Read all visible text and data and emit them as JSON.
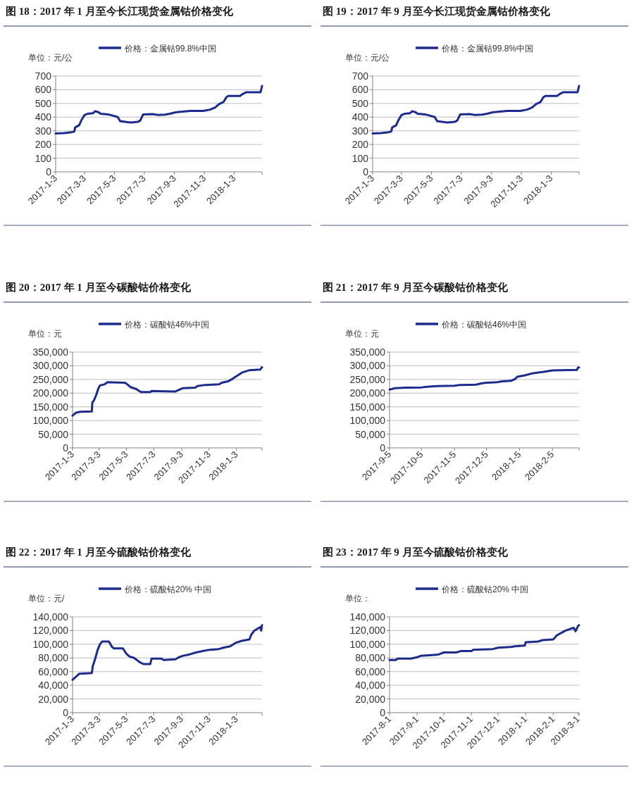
{
  "chart_data": [
    {
      "type": "line",
      "title": "图 18：2017 年 1 月至今长江现货金属钴价格变化",
      "ylabel": "单位：元/公",
      "legend": "top",
      "grid": "y",
      "xlim": [
        "2017-01-03",
        "2018-03-01"
      ],
      "ylim": [
        0,
        700
      ],
      "yticks": [
        0,
        100,
        200,
        300,
        400,
        500,
        600,
        700
      ],
      "xticks": [
        {
          "value": "2017-01-03",
          "label": "2017-1-3"
        },
        {
          "value": "2017-03-03",
          "label": "2017-3-3"
        },
        {
          "value": "2017-05-03",
          "label": "2017-5-3"
        },
        {
          "value": "2017-07-03",
          "label": "2017-7-3"
        },
        {
          "value": "2017-09-03",
          "label": "2017-9-3"
        },
        {
          "value": "2017-11-03",
          "label": "2017-11-3"
        },
        {
          "value": "2018-01-03",
          "label": "2018-1-3"
        }
      ],
      "x": [
        "2017-01-03",
        "2017-01-20",
        "2017-02-05",
        "2017-02-10",
        "2017-02-12",
        "2017-02-20",
        "2017-02-25",
        "2017-03-03",
        "2017-03-10",
        "2017-03-20",
        "2017-03-25",
        "2017-04-01",
        "2017-04-05",
        "2017-04-20",
        "2017-05-01",
        "2017-05-10",
        "2017-05-15",
        "2017-05-25",
        "2017-06-05",
        "2017-06-20",
        "2017-06-25",
        "2017-07-01",
        "2017-07-20",
        "2017-08-01",
        "2017-08-15",
        "2017-08-25",
        "2017-09-05",
        "2017-09-20",
        "2017-10-05",
        "2017-11-01",
        "2017-11-15",
        "2017-11-25",
        "2017-12-03",
        "2017-12-12",
        "2017-12-18",
        "2017-12-22",
        "2018-01-15",
        "2018-01-20",
        "2018-01-28",
        "2018-02-26",
        "2018-03-01"
      ],
      "series": [
        {
          "name": "价格：金属钴99.8%中国",
          "color": "#1c2b8c",
          "values": [
            280,
            283,
            290,
            295,
            325,
            340,
            380,
            415,
            425,
            428,
            443,
            435,
            425,
            420,
            410,
            400,
            370,
            365,
            360,
            365,
            375,
            420,
            422,
            415,
            418,
            425,
            435,
            440,
            445,
            445,
            455,
            470,
            495,
            510,
            545,
            555,
            555,
            568,
            582,
            582,
            628
          ]
        }
      ]
    },
    {
      "type": "line",
      "title": "图 19：2017 年 9 月至今长江现货金属钴价格变化",
      "ylabel": "单位：元/公",
      "legend": "top",
      "grid": "y",
      "xlim": [
        "2017-01-03",
        "2018-03-01"
      ],
      "ylim": [
        0,
        700
      ],
      "yticks": [
        0,
        100,
        200,
        300,
        400,
        500,
        600,
        700
      ],
      "xticks": [
        {
          "value": "2017-01-03",
          "label": "2017-1-3"
        },
        {
          "value": "2017-03-03",
          "label": "2017-3-3"
        },
        {
          "value": "2017-05-03",
          "label": "2017-5-3"
        },
        {
          "value": "2017-07-03",
          "label": "2017-7-3"
        },
        {
          "value": "2017-09-03",
          "label": "2017-9-3"
        },
        {
          "value": "2017-11-03",
          "label": "2017-11-3"
        },
        {
          "value": "2018-01-03",
          "label": "2018-1-3"
        }
      ],
      "x": [
        "2017-01-03",
        "2017-01-20",
        "2017-02-05",
        "2017-02-10",
        "2017-02-12",
        "2017-02-20",
        "2017-02-25",
        "2017-03-03",
        "2017-03-10",
        "2017-03-20",
        "2017-03-25",
        "2017-04-01",
        "2017-04-05",
        "2017-04-20",
        "2017-05-01",
        "2017-05-10",
        "2017-05-15",
        "2017-05-25",
        "2017-06-05",
        "2017-06-20",
        "2017-06-25",
        "2017-07-01",
        "2017-07-20",
        "2017-08-01",
        "2017-08-15",
        "2017-08-25",
        "2017-09-05",
        "2017-09-20",
        "2017-10-05",
        "2017-11-01",
        "2017-11-15",
        "2017-11-25",
        "2017-12-03",
        "2017-12-12",
        "2017-12-18",
        "2017-12-22",
        "2018-01-15",
        "2018-01-20",
        "2018-01-28",
        "2018-02-26",
        "2018-03-01"
      ],
      "series": [
        {
          "name": "价格：金属钴99.8%中国",
          "color": "#1c2b8c",
          "values": [
            280,
            283,
            290,
            295,
            325,
            340,
            380,
            415,
            425,
            428,
            443,
            435,
            425,
            420,
            410,
            400,
            370,
            365,
            360,
            365,
            375,
            420,
            422,
            415,
            418,
            425,
            435,
            440,
            445,
            445,
            455,
            470,
            495,
            510,
            545,
            555,
            555,
            568,
            582,
            582,
            628
          ]
        }
      ]
    },
    {
      "type": "line",
      "title": "图 20：2017 年 1 月至今碳酸钴价格变化",
      "ylabel": "单位：元",
      "legend": "top",
      "grid": "y",
      "xlim": [
        "2017-01-03",
        "2018-03-01"
      ],
      "ylim": [
        0,
        350000
      ],
      "yticks": [
        {
          "value": 0,
          "label": "0"
        },
        {
          "value": 50000,
          "label": "50,000"
        },
        {
          "value": 100000,
          "label": "100,000"
        },
        {
          "value": 150000,
          "label": "150,000"
        },
        {
          "value": 200000,
          "label": "200,000"
        },
        {
          "value": 250000,
          "label": "250,000"
        },
        {
          "value": 300000,
          "label": "300,000"
        },
        {
          "value": 350000,
          "label": "350,000"
        }
      ],
      "xticks": [
        {
          "value": "2017-01-03",
          "label": "2017-1-3"
        },
        {
          "value": "2017-03-03",
          "label": "2017-3-3"
        },
        {
          "value": "2017-05-03",
          "label": "2017-5-3"
        },
        {
          "value": "2017-07-03",
          "label": "2017-7-3"
        },
        {
          "value": "2017-09-03",
          "label": "2017-9-3"
        },
        {
          "value": "2017-11-03",
          "label": "2017-11-3"
        },
        {
          "value": "2018-01-03",
          "label": "2018-1-3"
        }
      ],
      "x": [
        "2017-01-03",
        "2017-01-10",
        "2017-01-20",
        "2017-02-15",
        "2017-02-16",
        "2017-02-20",
        "2017-02-25",
        "2017-03-01",
        "2017-03-05",
        "2017-03-15",
        "2017-03-22",
        "2017-04-30",
        "2017-05-05",
        "2017-05-12",
        "2017-05-25",
        "2017-06-01",
        "2017-06-05",
        "2017-06-25",
        "2017-06-28",
        "2017-08-20",
        "2017-08-28",
        "2017-09-05",
        "2017-10-03",
        "2017-10-08",
        "2017-10-25",
        "2017-11-25",
        "2017-12-01",
        "2017-12-15",
        "2017-12-25",
        "2018-01-03",
        "2018-01-15",
        "2018-02-01",
        "2018-02-25",
        "2018-03-01"
      ],
      "series": [
        {
          "name": "价格：碳酸钴46%中国",
          "color": "#1c2b8c",
          "values": [
            118000,
            128000,
            132000,
            133000,
            165000,
            175000,
            195000,
            215000,
            228000,
            232000,
            240000,
            238000,
            232000,
            222000,
            215000,
            207000,
            204000,
            204000,
            208000,
            206000,
            212000,
            218000,
            220000,
            226000,
            230000,
            232000,
            238000,
            243000,
            252000,
            262000,
            275000,
            284000,
            286000,
            295000
          ]
        }
      ]
    },
    {
      "type": "line",
      "title": "图 21：2017 年 9 月至今碳酸钴价格变化",
      "ylabel": "单位：元",
      "legend": "top",
      "grid": "y",
      "xlim": [
        "2017-09-05",
        "2018-03-02"
      ],
      "ylim": [
        0,
        350000
      ],
      "yticks": [
        {
          "value": 0,
          "label": "0"
        },
        {
          "value": 50000,
          "label": "50,000"
        },
        {
          "value": 100000,
          "label": "100,000"
        },
        {
          "value": 150000,
          "label": "150,000"
        },
        {
          "value": 200000,
          "label": "200,000"
        },
        {
          "value": 250000,
          "label": "250,000"
        },
        {
          "value": 300000,
          "label": "300,000"
        },
        {
          "value": 350000,
          "label": "350,000"
        }
      ],
      "xticks": [
        {
          "value": "2017-09-05",
          "label": "2017-9-5"
        },
        {
          "value": "2017-10-05",
          "label": "2017-10-5"
        },
        {
          "value": "2017-11-05",
          "label": "2017-11-5"
        },
        {
          "value": "2017-12-05",
          "label": "2017-12-5"
        },
        {
          "value": "2018-01-05",
          "label": "2018-1-5"
        },
        {
          "value": "2018-02-05",
          "label": "2018-2-5"
        }
      ],
      "x": [
        "2017-09-05",
        "2017-09-10",
        "2017-09-20",
        "2017-10-05",
        "2017-10-10",
        "2017-10-20",
        "2017-11-05",
        "2017-11-10",
        "2017-11-25",
        "2017-12-01",
        "2017-12-05",
        "2017-12-15",
        "2017-12-20",
        "2017-12-28",
        "2018-01-01",
        "2018-01-03",
        "2018-01-10",
        "2018-01-18",
        "2018-01-28",
        "2018-02-05",
        "2018-02-28",
        "2018-03-01",
        "2018-03-02"
      ],
      "series": [
        {
          "name": "价格：碳酸钴46%中国",
          "color": "#1c2b8c",
          "values": [
            213000,
            218000,
            220000,
            221000,
            223000,
            226000,
            227000,
            230000,
            231000,
            236000,
            238000,
            240000,
            243000,
            245000,
            252000,
            260000,
            265000,
            273000,
            278000,
            283000,
            285000,
            293000,
            294000
          ]
        }
      ]
    },
    {
      "type": "line",
      "title": "图 22：2017 年 1 月至今硫酸钴价格变化",
      "ylabel": "单位：元/",
      "legend": "top",
      "grid": "y",
      "xlim": [
        "2017-01-03",
        "2018-03-01"
      ],
      "ylim": [
        0,
        140000
      ],
      "yticks": [
        {
          "value": 0,
          "label": "0"
        },
        {
          "value": 20000,
          "label": "20,000"
        },
        {
          "value": 40000,
          "label": "40,000"
        },
        {
          "value": 60000,
          "label": "60,000"
        },
        {
          "value": 80000,
          "label": "80,000"
        },
        {
          "value": 100000,
          "label": "100,000"
        },
        {
          "value": 120000,
          "label": "120,000"
        },
        {
          "value": 140000,
          "label": "140,000"
        }
      ],
      "xticks": [
        {
          "value": "2017-01-03",
          "label": "2017-1-3"
        },
        {
          "value": "2017-03-03",
          "label": "2017-3-3"
        },
        {
          "value": "2017-05-03",
          "label": "2017-5-3"
        },
        {
          "value": "2017-07-03",
          "label": "2017-7-3"
        },
        {
          "value": "2017-09-03",
          "label": "2017-9-3"
        },
        {
          "value": "2017-11-03",
          "label": "2017-11-3"
        },
        {
          "value": "2018-01-03",
          "label": "2018-1-3"
        }
      ],
      "x": [
        "2017-01-03",
        "2017-01-10",
        "2017-01-18",
        "2017-02-15",
        "2017-02-17",
        "2017-02-22",
        "2017-02-28",
        "2017-03-05",
        "2017-03-10",
        "2017-03-25",
        "2017-04-01",
        "2017-04-05",
        "2017-04-25",
        "2017-05-03",
        "2017-05-10",
        "2017-05-20",
        "2017-06-01",
        "2017-06-10",
        "2017-06-25",
        "2017-06-28",
        "2017-07-20",
        "2017-07-25",
        "2017-08-20",
        "2017-08-28",
        "2017-09-05",
        "2017-09-20",
        "2017-10-05",
        "2017-10-20",
        "2017-11-05",
        "2017-11-25",
        "2017-12-05",
        "2017-12-20",
        "2018-01-01",
        "2018-01-15",
        "2018-02-01",
        "2018-02-05",
        "2018-02-12",
        "2018-02-25",
        "2018-02-27",
        "2018-03-01"
      ],
      "series": [
        {
          "name": "价格：硫酸钴20%  中国",
          "color": "#1c2b8c",
          "values": [
            48000,
            52000,
            57000,
            58000,
            68000,
            78000,
            92000,
            100000,
            104000,
            104000,
            96000,
            94000,
            94000,
            86000,
            82000,
            80000,
            74000,
            71000,
            71000,
            79000,
            79000,
            77000,
            78000,
            81000,
            83000,
            85000,
            88000,
            90000,
            92000,
            93000,
            95000,
            97000,
            102000,
            105000,
            107000,
            114000,
            120000,
            125000,
            120000,
            128000
          ]
        }
      ]
    },
    {
      "type": "line",
      "title": "图 23：2017 年 9 月至今硫酸钴价格变化",
      "ylabel": "单位：",
      "legend": "top",
      "grid": "y",
      "xlim": [
        "2017-08-01",
        "2018-03-02"
      ],
      "ylim": [
        0,
        140000
      ],
      "yticks": [
        {
          "value": 0,
          "label": "0"
        },
        {
          "value": 20000,
          "label": "20,000"
        },
        {
          "value": 40000,
          "label": "40,000"
        },
        {
          "value": 60000,
          "label": "60,000"
        },
        {
          "value": 80000,
          "label": "80,000"
        },
        {
          "value": 100000,
          "label": "100,000"
        },
        {
          "value": 120000,
          "label": "120,000"
        },
        {
          "value": 140000,
          "label": "140,000"
        }
      ],
      "xticks": [
        {
          "value": "2017-08-01",
          "label": "2017-8-1"
        },
        {
          "value": "2017-09-01",
          "label": "2017-9-1"
        },
        {
          "value": "2017-10-01",
          "label": "2017-10-1"
        },
        {
          "value": "2017-11-01",
          "label": "2017-11-1"
        },
        {
          "value": "2017-12-01",
          "label": "2017-12-1"
        },
        {
          "value": "2018-01-01",
          "label": "2018-1-1"
        },
        {
          "value": "2018-02-01",
          "label": "2018-2-1"
        },
        {
          "value": "2018-03-01",
          "label": "2018-3-1"
        }
      ],
      "x": [
        "2017-08-01",
        "2017-08-08",
        "2017-08-10",
        "2017-08-25",
        "2017-09-01",
        "2017-09-05",
        "2017-09-15",
        "2017-09-25",
        "2017-10-01",
        "2017-10-15",
        "2017-10-20",
        "2017-11-01",
        "2017-11-03",
        "2017-11-25",
        "2017-12-01",
        "2017-12-15",
        "2017-12-20",
        "2017-12-31",
        "2018-01-01",
        "2018-01-15",
        "2018-01-20",
        "2018-02-01",
        "2018-02-05",
        "2018-02-12",
        "2018-02-15",
        "2018-02-24",
        "2018-02-26",
        "2018-03-01",
        "2018-03-02"
      ],
      "series": [
        {
          "name": "价格：硫酸钴20%  中国",
          "color": "#1c2b8c",
          "values": [
            77000,
            77000,
            79000,
            79000,
            81000,
            83000,
            84000,
            85000,
            88000,
            88000,
            90000,
            90000,
            92000,
            93000,
            95000,
            96000,
            97000,
            98000,
            103000,
            104000,
            106000,
            107000,
            113000,
            118000,
            120000,
            124000,
            119000,
            127000,
            128000
          ]
        }
      ]
    }
  ]
}
